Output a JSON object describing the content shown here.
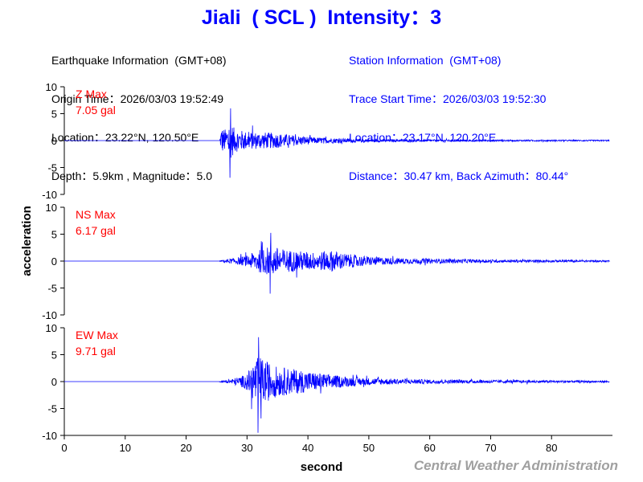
{
  "header": {
    "title": "Jiali  ( SCL )  Intensity：3"
  },
  "earthquake_info": {
    "heading": "Earthquake Information  (GMT+08)",
    "origin_time": "Origin Time：2026/03/03 19:52:49",
    "location": "Location：23.22°N, 120.50°E",
    "depth_magnitude": "Depth：5.9km , Magnitude：5.0"
  },
  "station_info": {
    "heading": "Station Information  (GMT+08)",
    "trace_start": "Trace Start Time：2026/03/03 19:52:30",
    "location": "Location：23.17°N, 120.20°E",
    "distance": "Distance：30.47 km, Back Azimuth：80.44°"
  },
  "footer": {
    "credit": "Central Weather Administration"
  },
  "colors": {
    "title": "#0000ff",
    "trace": "#0000ff",
    "max_label": "#ff0000",
    "credit": "#a0a0a0"
  },
  "chart_data": {
    "type": "line",
    "xlabel": "second",
    "ylabel": "acceleration",
    "xlim": [
      0,
      90
    ],
    "ylim": [
      -10,
      10
    ],
    "x_ticks": [
      0,
      10,
      20,
      30,
      40,
      50,
      60,
      70,
      80
    ],
    "y_ticks": [
      10,
      5,
      0,
      -5,
      -10
    ],
    "grid": false,
    "trace_start_s": 25.5,
    "series": [
      {
        "name": "Z",
        "max_label": "Z Max",
        "max_value": "7.05 gal",
        "peak_abs": 7.05,
        "peak_time_s": 27.2,
        "envelope": [
          [
            25.5,
            0.2
          ],
          [
            25.8,
            4.5
          ],
          [
            26.5,
            3.8
          ],
          [
            27.2,
            6.5
          ],
          [
            28.0,
            4.0
          ],
          [
            30.0,
            3.0
          ],
          [
            33.0,
            2.8
          ],
          [
            35.0,
            2.5
          ],
          [
            38.0,
            1.7
          ],
          [
            41.0,
            1.1
          ],
          [
            45.0,
            0.8
          ],
          [
            50.0,
            0.5
          ],
          [
            60.0,
            0.35
          ],
          [
            75.0,
            0.25
          ],
          [
            89.5,
            0.2
          ]
        ]
      },
      {
        "name": "NS",
        "max_label": "NS Max",
        "max_value": "6.17 gal",
        "peak_abs": 6.17,
        "peak_time_s": 33.8,
        "envelope": [
          [
            25.5,
            0.1
          ],
          [
            26.5,
            0.6
          ],
          [
            28.0,
            1.0
          ],
          [
            30.0,
            1.8
          ],
          [
            31.5,
            3.5
          ],
          [
            33.0,
            4.5
          ],
          [
            34.0,
            5.2
          ],
          [
            36.0,
            4.0
          ],
          [
            38.0,
            3.5
          ],
          [
            41.0,
            3.0
          ],
          [
            44.0,
            3.6
          ],
          [
            46.0,
            2.6
          ],
          [
            48.0,
            2.0
          ],
          [
            50.0,
            1.5
          ],
          [
            55.0,
            1.0
          ],
          [
            60.0,
            0.8
          ],
          [
            70.0,
            0.5
          ],
          [
            89.5,
            0.3
          ]
        ]
      },
      {
        "name": "EW",
        "max_label": "EW Max",
        "max_value": "9.71 gal",
        "peak_abs": 9.71,
        "peak_time_s": 31.8,
        "envelope": [
          [
            25.5,
            0.15
          ],
          [
            27.0,
            0.6
          ],
          [
            28.5,
            1.5
          ],
          [
            30.0,
            2.5
          ],
          [
            31.0,
            6.5
          ],
          [
            32.0,
            8.5
          ],
          [
            33.5,
            6.5
          ],
          [
            35.0,
            5.0
          ],
          [
            37.0,
            4.5
          ],
          [
            40.0,
            3.5
          ],
          [
            43.0,
            2.5
          ],
          [
            46.0,
            1.8
          ],
          [
            50.0,
            1.2
          ],
          [
            55.0,
            0.9
          ],
          [
            60.0,
            0.7
          ],
          [
            70.0,
            0.5
          ],
          [
            89.5,
            0.3
          ]
        ]
      }
    ]
  }
}
